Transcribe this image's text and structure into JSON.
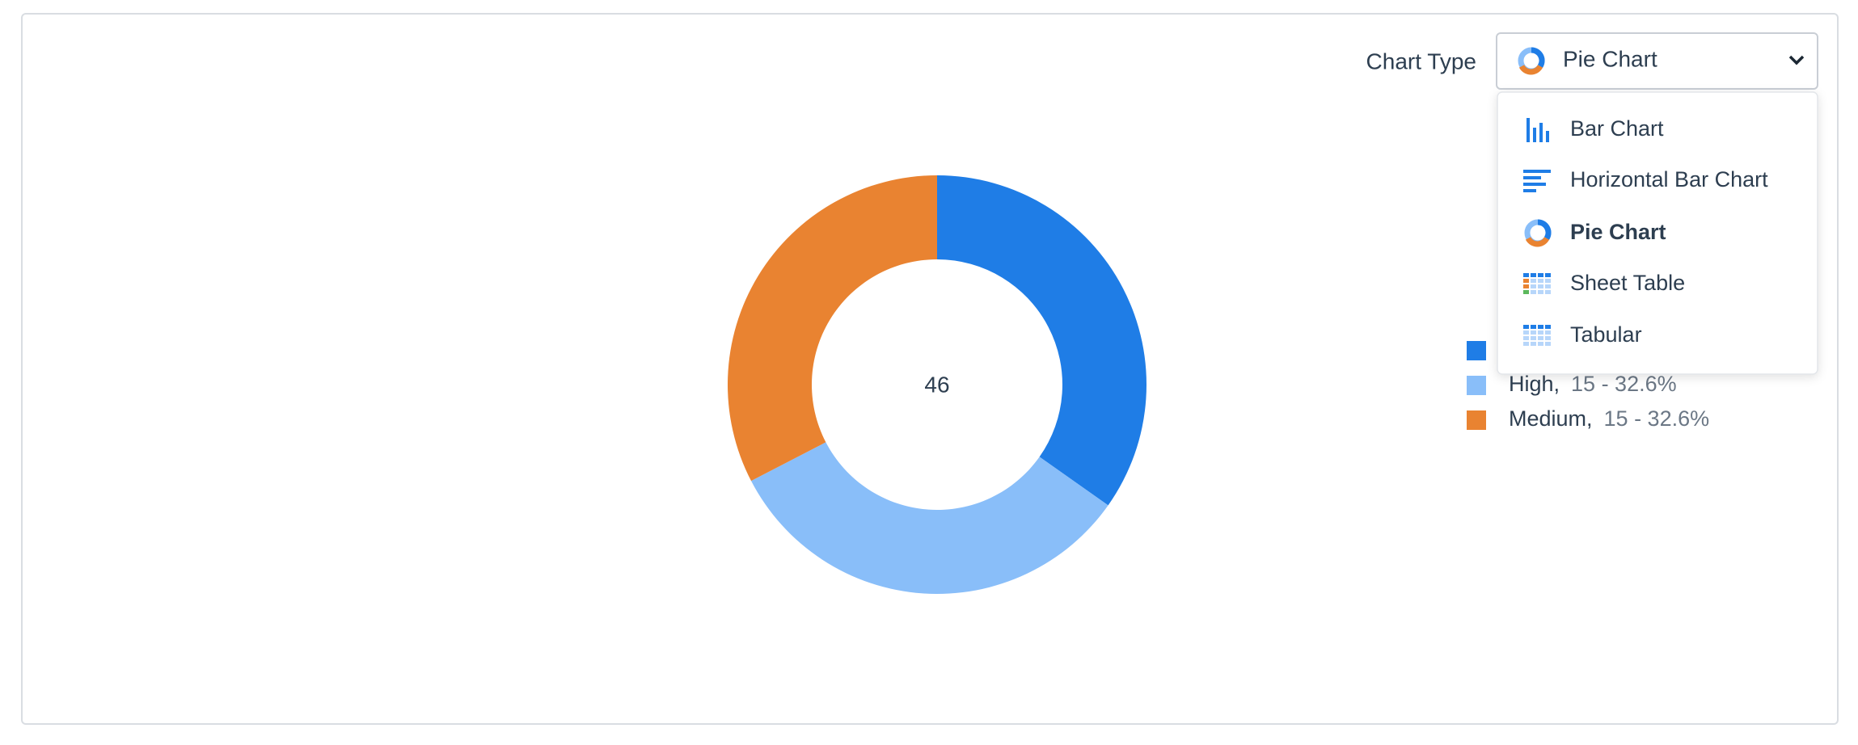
{
  "controls": {
    "label": "Chart Type",
    "selected": "Pie Chart",
    "options": [
      "Bar Chart",
      "Horizontal Bar Chart",
      "Pie Chart",
      "Sheet Table",
      "Tabular"
    ]
  },
  "chart_data": {
    "type": "pie",
    "donut": true,
    "total": 46,
    "categories": [
      null,
      "High,",
      "Medium,"
    ],
    "values": [
      16,
      15,
      15
    ],
    "value_labels": [
      null,
      "15 - 32.6%",
      "15 - 32.6%"
    ],
    "colors": [
      "#1f7de6",
      "#89bef9",
      "#e98331"
    ]
  }
}
